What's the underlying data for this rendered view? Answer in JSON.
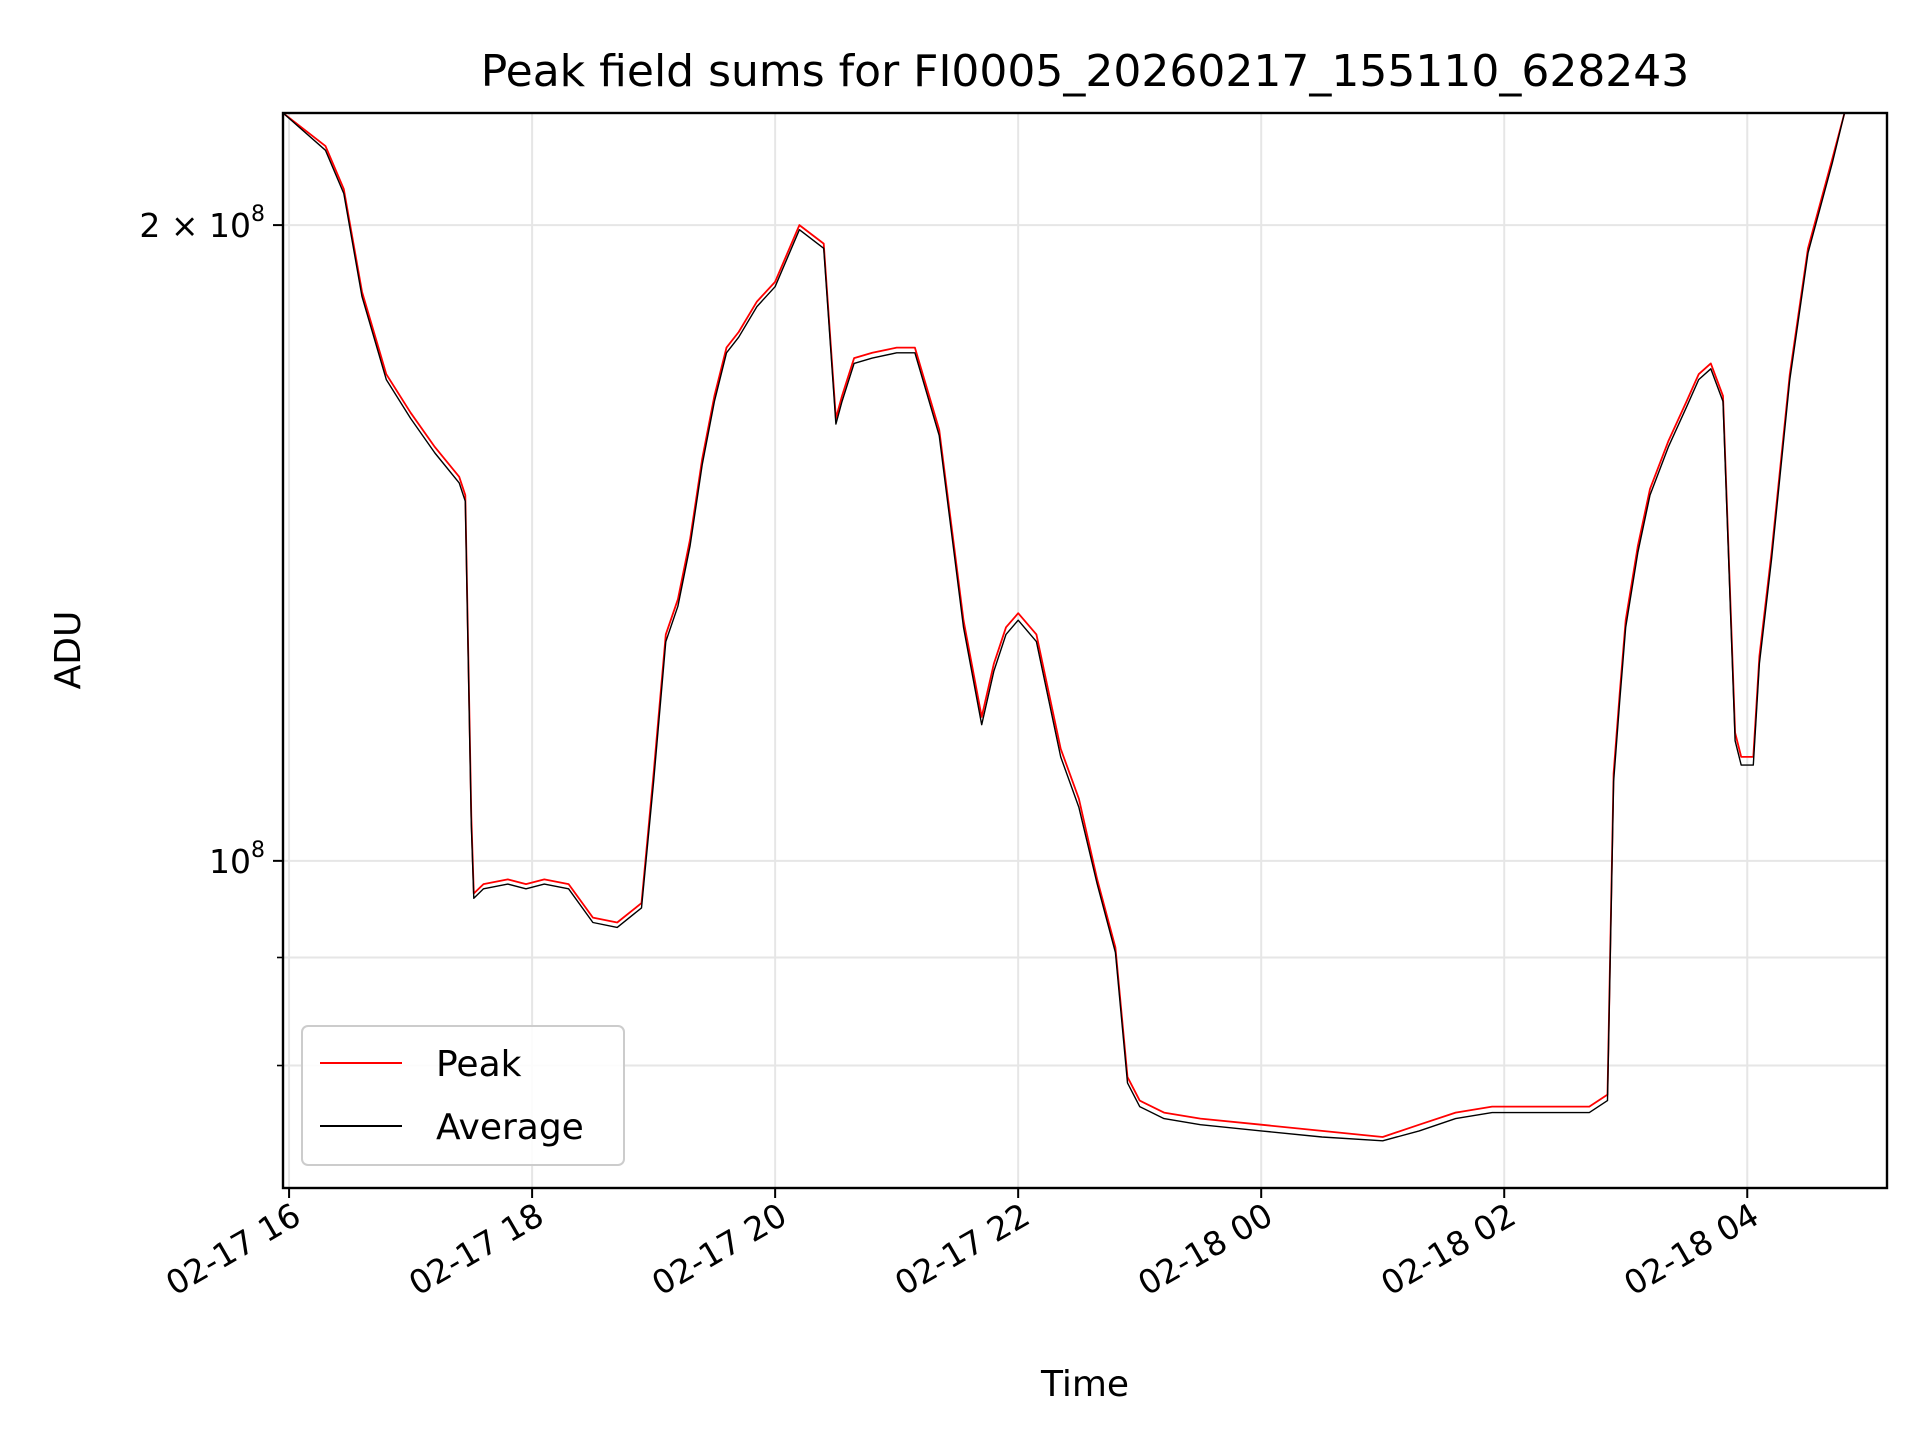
{
  "chart_data": {
    "type": "line",
    "title": "Peak field sums for FI0005_20260217_155110_628243",
    "xlabel": "Time",
    "ylabel": "ADU",
    "x_unit": "hours relative to 2026-02-17 00:00",
    "xlim": [
      15.95,
      29.15
    ],
    "ylim": [
      70000000,
      226000000
    ],
    "y_scale": "log",
    "grid": true,
    "legend_position": "lower-left",
    "x_ticks": [
      {
        "value": 16,
        "label": "02-17 16"
      },
      {
        "value": 18,
        "label": "02-17 18"
      },
      {
        "value": 20,
        "label": "02-17 20"
      },
      {
        "value": 22,
        "label": "02-17 22"
      },
      {
        "value": 24,
        "label": "02-18 00"
      },
      {
        "value": 26,
        "label": "02-18 02"
      },
      {
        "value": 28,
        "label": "02-18 04"
      }
    ],
    "y_ticks": [
      {
        "value": 100000000,
        "base": "10",
        "exp": "8",
        "label": ""
      },
      {
        "value": 200000000,
        "base": "2 × 10",
        "exp": "8",
        "label": ""
      }
    ],
    "y_minor_ticks": [
      80000000,
      90000000
    ],
    "series": [
      {
        "name": "Peak",
        "color": "#ff0000",
        "x": [
          15.95,
          16.3,
          16.45,
          16.6,
          16.8,
          17.0,
          17.2,
          17.4,
          17.45,
          17.5,
          17.52,
          17.6,
          17.8,
          17.95,
          18.1,
          18.3,
          18.5,
          18.7,
          18.9,
          19.0,
          19.1,
          19.2,
          19.3,
          19.4,
          19.5,
          19.6,
          19.7,
          19.85,
          20.0,
          20.2,
          20.4,
          20.5,
          20.55,
          20.65,
          20.8,
          21.0,
          21.15,
          21.35,
          21.55,
          21.7,
          21.8,
          21.9,
          22.0,
          22.15,
          22.35,
          22.5,
          22.65,
          22.8,
          22.9,
          23.0,
          23.2,
          23.5,
          24.0,
          24.5,
          25.0,
          25.3,
          25.6,
          25.9,
          26.2,
          26.5,
          26.7,
          26.85,
          26.9,
          26.95,
          27.0,
          27.1,
          27.2,
          27.35,
          27.5,
          27.6,
          27.7,
          27.8,
          27.9,
          27.95,
          28.05,
          28.1,
          28.2,
          28.35,
          28.5,
          28.7,
          28.8,
          28.9,
          29.15
        ],
        "y": [
          226000000,
          218000000,
          208000000,
          186000000,
          170000000,
          163000000,
          157000000,
          152000000,
          149000000,
          105000000,
          96500000,
          97500000,
          98000000,
          97500000,
          98000000,
          97500000,
          94000000,
          93500000,
          95500000,
          110000000,
          128000000,
          133000000,
          142000000,
          155000000,
          166000000,
          175000000,
          178000000,
          184000000,
          188000000,
          200000000,
          196000000,
          162000000,
          166000000,
          173000000,
          174000000,
          175000000,
          175000000,
          160000000,
          130000000,
          117000000,
          124000000,
          129000000,
          131000000,
          128000000,
          113000000,
          107000000,
          98000000,
          91000000,
          79000000,
          77000000,
          76000000,
          75500000,
          75000000,
          74500000,
          74000000,
          75000000,
          76000000,
          76500000,
          76500000,
          76500000,
          76500000,
          77500000,
          110000000,
          120000000,
          130000000,
          141000000,
          150000000,
          158000000,
          165000000,
          170000000,
          172000000,
          166000000,
          115000000,
          112000000,
          112000000,
          125000000,
          140000000,
          170000000,
          195000000,
          215000000,
          226000000,
          226000000,
          226000000
        ]
      },
      {
        "name": "Average",
        "color": "#000000",
        "x": [
          15.95,
          16.3,
          16.45,
          16.6,
          16.8,
          17.0,
          17.2,
          17.4,
          17.45,
          17.5,
          17.52,
          17.6,
          17.8,
          17.95,
          18.1,
          18.3,
          18.5,
          18.7,
          18.9,
          19.0,
          19.1,
          19.2,
          19.3,
          19.4,
          19.5,
          19.6,
          19.7,
          19.85,
          20.0,
          20.2,
          20.4,
          20.5,
          20.55,
          20.65,
          20.8,
          21.0,
          21.15,
          21.35,
          21.55,
          21.7,
          21.8,
          21.9,
          22.0,
          22.15,
          22.35,
          22.5,
          22.65,
          22.8,
          22.9,
          23.0,
          23.2,
          23.5,
          24.0,
          24.5,
          25.0,
          25.3,
          25.6,
          25.9,
          26.2,
          26.5,
          26.7,
          26.85,
          26.9,
          26.95,
          27.0,
          27.1,
          27.2,
          27.35,
          27.5,
          27.6,
          27.7,
          27.8,
          27.9,
          27.95,
          28.05,
          28.1,
          28.2,
          28.35,
          28.5,
          28.7,
          28.8,
          28.9,
          29.15
        ],
        "y": [
          226000000,
          217000000,
          207000000,
          185000000,
          169000000,
          162000000,
          156000000,
          151000000,
          148000000,
          104000000,
          96000000,
          97000000,
          97500000,
          97000000,
          97500000,
          97000000,
          93500000,
          93000000,
          95000000,
          109000000,
          127000000,
          132000000,
          141000000,
          154000000,
          165000000,
          174000000,
          177000000,
          183000000,
          187000000,
          199000000,
          195000000,
          161000000,
          165000000,
          172000000,
          173000000,
          174000000,
          174000000,
          159000000,
          129000000,
          116000000,
          123000000,
          128000000,
          130000000,
          127000000,
          112000000,
          106000000,
          97500000,
          90500000,
          78500000,
          76500000,
          75500000,
          75000000,
          74500000,
          74000000,
          73700000,
          74500000,
          75500000,
          76000000,
          76000000,
          76000000,
          76000000,
          77000000,
          109000000,
          119000000,
          129000000,
          140000000,
          149000000,
          157000000,
          164000000,
          169000000,
          171000000,
          165000000,
          114000000,
          111000000,
          111000000,
          124000000,
          139000000,
          169000000,
          194000000,
          214000000,
          226000000,
          226000000,
          226000000
        ]
      }
    ]
  }
}
